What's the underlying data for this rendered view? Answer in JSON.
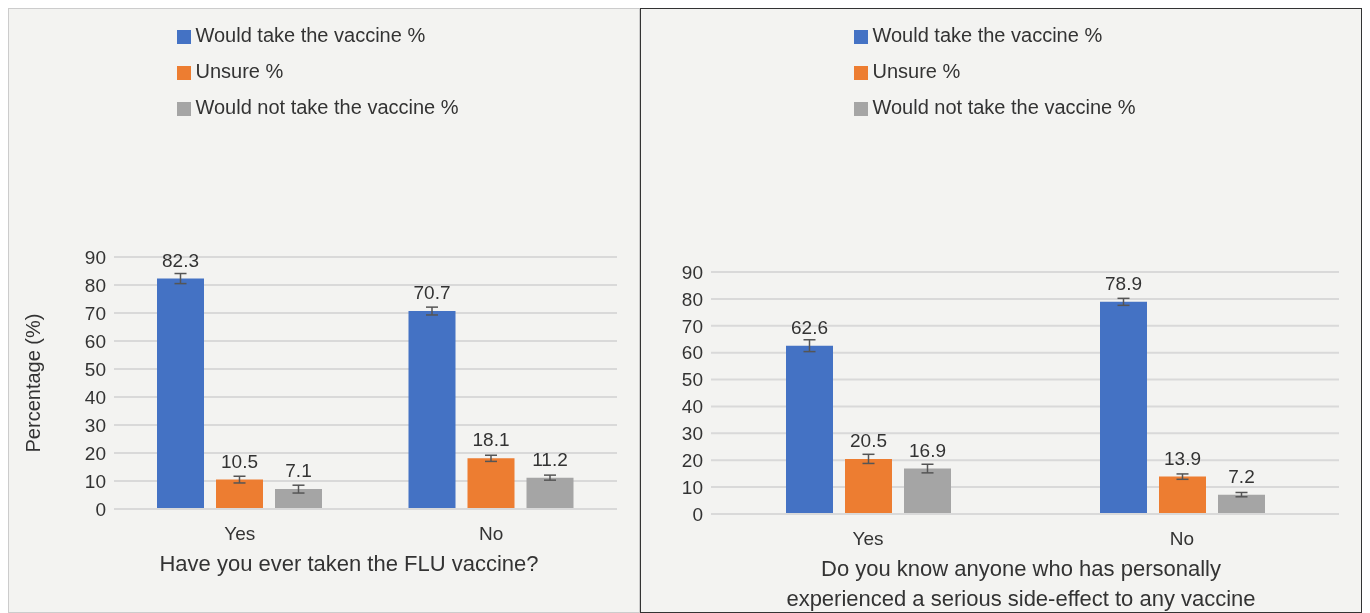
{
  "chart_data": [
    {
      "type": "bar",
      "xlabel": "Have you ever taken the FLU vaccine?",
      "ylabel": "Percentage (%)",
      "categories": [
        "Yes",
        "No"
      ],
      "ylim": [
        0,
        90
      ],
      "yticks": [
        0,
        10,
        20,
        30,
        40,
        50,
        60,
        70,
        80,
        90
      ],
      "grid": "y",
      "legend": "top",
      "data_labels": true,
      "series": [
        {
          "name": "Would take the vaccine %",
          "color": "#4472c4",
          "values": [
            82.3,
            70.7
          ],
          "errors": [
            1.8,
            1.4
          ]
        },
        {
          "name": "Unsure %",
          "color": "#ed7d31",
          "values": [
            10.5,
            18.1
          ],
          "errors": [
            1.2,
            1.1
          ]
        },
        {
          "name": "Would not take the vaccine %",
          "color": "#a5a5a5",
          "values": [
            7.1,
            11.2
          ],
          "errors": [
            1.4,
            0.9
          ]
        }
      ]
    },
    {
      "type": "bar",
      "xlabel": "Do you know anyone who has personally experienced a serious side-effect to any vaccine",
      "categories": [
        "Yes",
        "No"
      ],
      "ylim": [
        0,
        90
      ],
      "yticks": [
        0,
        10,
        20,
        30,
        40,
        50,
        60,
        70,
        80,
        90
      ],
      "grid": "y",
      "legend": "top",
      "data_labels": true,
      "series": [
        {
          "name": "Would take the vaccine %",
          "color": "#4472c4",
          "values": [
            62.6,
            78.9
          ],
          "errors": [
            2.2,
            1.3
          ]
        },
        {
          "name": "Unsure %",
          "color": "#ed7d31",
          "values": [
            20.5,
            13.9
          ],
          "errors": [
            1.7,
            1.0
          ]
        },
        {
          "name": "Would not take the vaccine %",
          "color": "#a5a5a5",
          "values": [
            16.9,
            7.2
          ],
          "errors": [
            1.6,
            0.8
          ]
        }
      ]
    }
  ]
}
